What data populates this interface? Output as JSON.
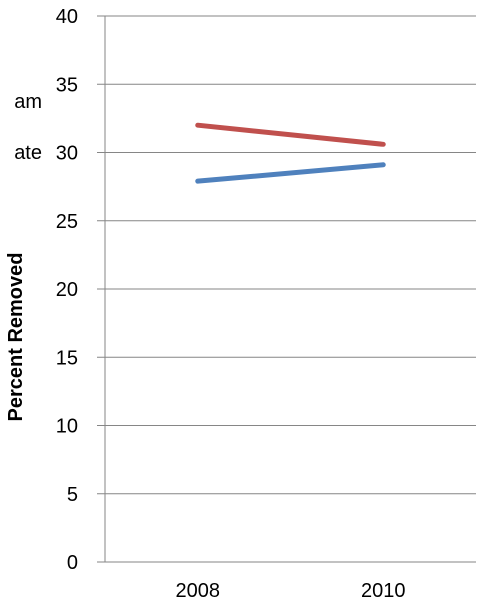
{
  "chart_data": {
    "type": "line",
    "title": "",
    "xlabel": "",
    "ylabel": "Percent Removed",
    "categories": [
      "2008",
      "2010"
    ],
    "ylim": [
      0,
      40
    ],
    "yticks": [
      "0",
      "5",
      "10",
      "15",
      "20",
      "25",
      "30",
      "35",
      "40"
    ],
    "grid": true,
    "series": [
      {
        "name": "am",
        "color": "#c0504d",
        "values": [
          32.0,
          30.6
        ]
      },
      {
        "name": "ate",
        "color": "#4f81bd",
        "values": [
          27.9,
          29.1
        ]
      }
    ],
    "legend": {
      "placement": "left, partially cut off"
    }
  }
}
